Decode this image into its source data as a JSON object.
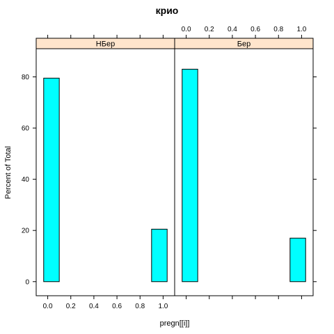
{
  "chart_data": {
    "type": "bar",
    "title": "крио",
    "xlabel": "pregn[[i]]",
    "ylabel": "Percent of Total",
    "xlim": [
      -0.1,
      1.1
    ],
    "ylim": [
      -5.5,
      91
    ],
    "x_ticks": [
      "0.0",
      "0.2",
      "0.4",
      "0.6",
      "0.8",
      "1.0"
    ],
    "y_ticks": [
      "0",
      "20",
      "40",
      "60",
      "80"
    ],
    "grid": false,
    "bar_color": "#00FFFF",
    "strip_color": "#FFE5CC",
    "panels": [
      {
        "name": "НБер",
        "bins": [
          {
            "x0": -0.035,
            "x1": 0.1,
            "value": 79.5
          },
          {
            "x0": 0.9,
            "x1": 1.035,
            "value": 20.5
          }
        ]
      },
      {
        "name": "Бер",
        "bins": [
          {
            "x0": -0.035,
            "x1": 0.1,
            "value": 83
          },
          {
            "x0": 0.9,
            "x1": 1.035,
            "value": 17
          }
        ]
      }
    ]
  }
}
